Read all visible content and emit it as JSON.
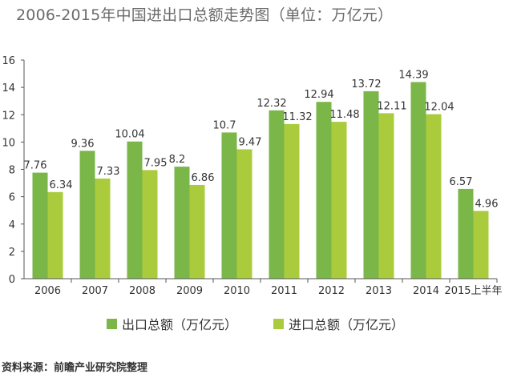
{
  "title": "2006-2015年中国进出口总额走势图（单位：万亿元）",
  "source": "资料来源：前瞻产业研究院整理",
  "colors": {
    "export": "#7ab648",
    "import": "#aacc3c",
    "axis": "#555555",
    "text": "#333333"
  },
  "chart_data": {
    "type": "bar",
    "title": "2006-2015年中国进出口总额走势图（单位：万亿元）",
    "categories": [
      "2006",
      "2007",
      "2008",
      "2009",
      "2010",
      "2011",
      "2012",
      "2013",
      "2014",
      "2015上半年"
    ],
    "series": [
      {
        "name": "出口总额（万亿元）",
        "values": [
          7.76,
          9.36,
          10.04,
          8.2,
          10.7,
          12.32,
          12.94,
          13.72,
          14.39,
          6.57
        ],
        "labels": [
          "7.76",
          "9.36",
          "10.04",
          "8.2",
          "10.7",
          "12.32",
          "12.94",
          "13.72",
          "14.39",
          "6.57"
        ]
      },
      {
        "name": "进口总额（万亿元）",
        "values": [
          6.34,
          7.33,
          7.95,
          6.86,
          9.47,
          11.32,
          11.48,
          12.11,
          12.04,
          4.96
        ],
        "labels": [
          "6.34",
          "7.33",
          "7.95",
          "6.86",
          "9.47",
          "11.32",
          "11.48",
          "12.11",
          "12.04",
          "4.96"
        ]
      }
    ],
    "ylim": [
      0,
      16
    ],
    "yticks": [
      "0",
      "2",
      "4",
      "6",
      "8",
      "10",
      "12",
      "14",
      "16"
    ],
    "grid": false,
    "legend": "bottom"
  }
}
